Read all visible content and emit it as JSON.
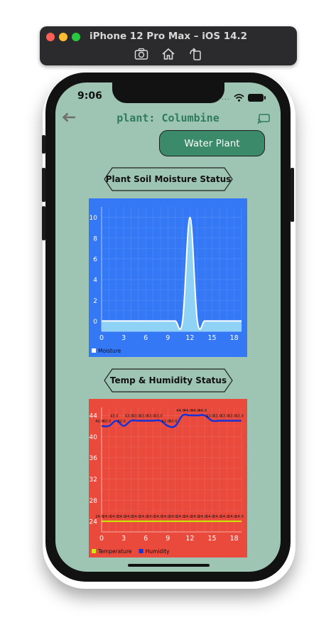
{
  "simulator": {
    "title": "iPhone 12 Pro Max – iOS 14.2",
    "icons": [
      "screenshot-icon",
      "home-icon",
      "rotate-icon"
    ]
  },
  "status_bar": {
    "time": "9:06",
    "signal": "....",
    "icons": [
      "wifi-icon",
      "battery-icon"
    ]
  },
  "header": {
    "title": "plant: Columbine",
    "back_icon": "back-arrow-icon",
    "right_icon": "cast-icon"
  },
  "actions": {
    "water_label": "Water Plant"
  },
  "sections": {
    "moisture_title": "Plant Soil Moisture Status",
    "temp_humidity_title": "Temp & Humidity Status"
  },
  "colors": {
    "background": "#9ec5b4",
    "accent_green": "#3b8a69",
    "title_green": "#2f7c5c",
    "moisture_chart_bg": "#3478f6",
    "moisture_fill": "#8ed2f6",
    "temp_chart_bg": "#e94a3c",
    "temperature_line": "#c6f000",
    "humidity_line": "#1732d6"
  },
  "chart_data": [
    {
      "type": "area",
      "x_ticks": [
        0,
        3,
        6,
        9,
        12,
        15,
        18
      ],
      "y_ticks": [
        0,
        2,
        4,
        6,
        8,
        10
      ],
      "xlim": [
        0,
        19
      ],
      "ylim": [
        -1,
        11
      ],
      "grid": true,
      "legend_position": "bottom-left",
      "series": [
        {
          "name": "Moisture",
          "x": [
            0,
            1,
            2,
            3,
            4,
            5,
            6,
            7,
            8,
            9,
            10,
            11,
            12,
            13,
            14,
            15,
            16,
            17,
            18,
            19
          ],
          "values": [
            0,
            0,
            0,
            0,
            0,
            0,
            0,
            0,
            0,
            0,
            0,
            0,
            10,
            0,
            0,
            0,
            0,
            0,
            0,
            0
          ]
        }
      ]
    },
    {
      "type": "line",
      "x_ticks": [
        0,
        3,
        6,
        9,
        12,
        15,
        18
      ],
      "y_ticks": [
        24,
        28,
        32,
        36,
        40,
        44
      ],
      "xlim": [
        0,
        19
      ],
      "ylim": [
        22,
        45.5
      ],
      "grid": true,
      "legend_position": "bottom-left",
      "series": [
        {
          "name": "Temperature",
          "x": [
            0,
            1,
            2,
            3,
            4,
            5,
            6,
            7,
            8,
            9,
            10,
            11,
            12,
            13,
            14,
            15,
            16,
            17,
            18,
            19
          ],
          "values": [
            24,
            24,
            24,
            24,
            24,
            24,
            24,
            24,
            24,
            24,
            24,
            24,
            24,
            24,
            24,
            24,
            24,
            24,
            24,
            24
          ],
          "labels": [
            "24.0",
            "24.0",
            "24.0",
            "24.0",
            "24.0",
            "24.0",
            "24.0",
            "24.0",
            "24.0",
            "24.0",
            "24.0",
            "24.0",
            "24.0",
            "24.0",
            "24.0",
            "24.0",
            "24.0",
            "24.0",
            "24.0",
            "24.0"
          ]
        },
        {
          "name": "Humidity",
          "x": [
            0,
            1,
            2,
            3,
            4,
            5,
            6,
            7,
            8,
            9,
            10,
            11,
            12,
            13,
            14,
            15,
            16,
            17,
            18,
            19
          ],
          "values": [
            42,
            42,
            43,
            42,
            43,
            43,
            43,
            43,
            43,
            42,
            42,
            44,
            44,
            44,
            44,
            43,
            43,
            43,
            43,
            43
          ],
          "labels": [
            "42.0",
            "42.0",
            "43.0",
            "42.0",
            "43.0",
            "43.0",
            "43.0",
            "43.0",
            "43.0",
            "42.0",
            "42.0",
            "44.0",
            "44.0",
            "44.0",
            "44.0",
            "43.0",
            "43.0",
            "43.0",
            "43.0",
            "43.0"
          ]
        }
      ]
    }
  ]
}
